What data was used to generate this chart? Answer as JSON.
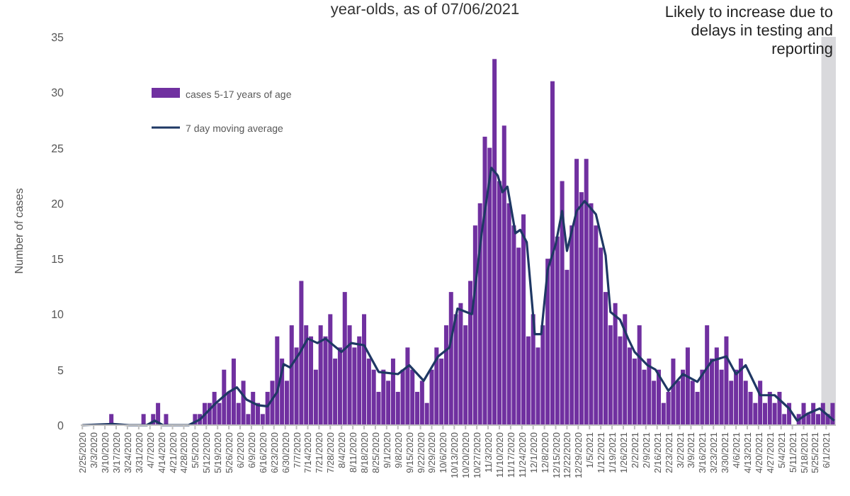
{
  "chart_data": {
    "type": "bar",
    "title": "year-olds, as of 07/06/2021",
    "ylabel": "Number of cases",
    "xlim": [
      "2020-02-24",
      "2021-06-07"
    ],
    "ylim": [
      0,
      35
    ],
    "yticks": [
      0,
      5,
      10,
      15,
      20,
      25,
      30,
      35
    ],
    "grid": false,
    "legend": "top left",
    "xticks": [
      {
        "value": "2020-02-25",
        "label": "2/25/2020"
      },
      {
        "value": "2020-03-03",
        "label": "3/3/2020"
      },
      {
        "value": "2020-03-10",
        "label": "3/10/2020"
      },
      {
        "value": "2020-03-17",
        "label": "3/17/2020"
      },
      {
        "value": "2020-03-24",
        "label": "3/24/2020"
      },
      {
        "value": "2020-03-31",
        "label": "3/31/2020"
      },
      {
        "value": "2020-04-07",
        "label": "4/7/2020"
      },
      {
        "value": "2020-04-14",
        "label": "4/14/2020"
      },
      {
        "value": "2020-04-21",
        "label": "4/21/2020"
      },
      {
        "value": "2020-04-28",
        "label": "4/28/2020"
      },
      {
        "value": "2020-05-05",
        "label": "5/5/2020"
      },
      {
        "value": "2020-05-12",
        "label": "5/12/2020"
      },
      {
        "value": "2020-05-19",
        "label": "5/19/2020"
      },
      {
        "value": "2020-05-26",
        "label": "5/26/2020"
      },
      {
        "value": "2020-06-02",
        "label": "6/2/2020"
      },
      {
        "value": "2020-06-09",
        "label": "6/9/2020"
      },
      {
        "value": "2020-06-16",
        "label": "6/16/2020"
      },
      {
        "value": "2020-06-23",
        "label": "6/23/2020"
      },
      {
        "value": "2020-06-30",
        "label": "6/30/2020"
      },
      {
        "value": "2020-07-07",
        "label": "7/7/2020"
      },
      {
        "value": "2020-07-14",
        "label": "7/14/2020"
      },
      {
        "value": "2020-07-21",
        "label": "7/21/2020"
      },
      {
        "value": "2020-07-28",
        "label": "7/28/2020"
      },
      {
        "value": "2020-08-04",
        "label": "8/4/2020"
      },
      {
        "value": "2020-08-11",
        "label": "8/11/2020"
      },
      {
        "value": "2020-08-18",
        "label": "8/18/2020"
      },
      {
        "value": "2020-08-25",
        "label": "8/25/2020"
      },
      {
        "value": "2020-09-01",
        "label": "9/1/2020"
      },
      {
        "value": "2020-09-08",
        "label": "9/8/2020"
      },
      {
        "value": "2020-09-15",
        "label": "9/15/2020"
      },
      {
        "value": "2020-09-22",
        "label": "9/22/2020"
      },
      {
        "value": "2020-09-29",
        "label": "9/29/2020"
      },
      {
        "value": "2020-10-06",
        "label": "10/6/2020"
      },
      {
        "value": "2020-10-13",
        "label": "10/13/2020"
      },
      {
        "value": "2020-10-20",
        "label": "10/20/2020"
      },
      {
        "value": "2020-10-27",
        "label": "10/27/2020"
      },
      {
        "value": "2020-11-03",
        "label": "11/3/2020"
      },
      {
        "value": "2020-11-10",
        "label": "11/10/2020"
      },
      {
        "value": "2020-11-17",
        "label": "11/17/2020"
      },
      {
        "value": "2020-11-24",
        "label": "11/24/2020"
      },
      {
        "value": "2020-12-01",
        "label": "12/1/2020"
      },
      {
        "value": "2020-12-08",
        "label": "12/8/2020"
      },
      {
        "value": "2020-12-15",
        "label": "12/15/2020"
      },
      {
        "value": "2020-12-22",
        "label": "12/22/2020"
      },
      {
        "value": "2020-12-29",
        "label": "12/29/2020"
      },
      {
        "value": "2021-01-05",
        "label": "1/5/2021"
      },
      {
        "value": "2021-01-12",
        "label": "1/12/2021"
      },
      {
        "value": "2021-01-19",
        "label": "1/19/2021"
      },
      {
        "value": "2021-01-26",
        "label": "1/26/2021"
      },
      {
        "value": "2021-02-02",
        "label": "2/2/2021"
      },
      {
        "value": "2021-02-09",
        "label": "2/9/2021"
      },
      {
        "value": "2021-02-16",
        "label": "2/16/2021"
      },
      {
        "value": "2021-02-23",
        "label": "2/23/2021"
      },
      {
        "value": "2021-03-02",
        "label": "3/2/2021"
      },
      {
        "value": "2021-03-09",
        "label": "3/9/2021"
      },
      {
        "value": "2021-03-16",
        "label": "3/16/2021"
      },
      {
        "value": "2021-03-23",
        "label": "3/23/2021"
      },
      {
        "value": "2021-03-30",
        "label": "3/30/2021"
      },
      {
        "value": "2021-04-06",
        "label": "4/6/2021"
      },
      {
        "value": "2021-04-13",
        "label": "4/13/2021"
      },
      {
        "value": "2021-04-20",
        "label": "4/20/2021"
      },
      {
        "value": "2021-04-27",
        "label": "4/27/2021"
      },
      {
        "value": "2021-05-04",
        "label": "5/4/2021"
      },
      {
        "value": "2021-05-11",
        "label": "5/11/2021"
      },
      {
        "value": "2021-05-18",
        "label": "5/18/2021"
      },
      {
        "value": "2021-05-25",
        "label": "5/25/2021"
      },
      {
        "value": "2021-06-01",
        "label": "6/1/2021"
      }
    ],
    "bands": [
      {
        "axis": "x",
        "from": "2021-05-29",
        "to": "2021-06-07",
        "label": "Likely to increase due to delays in testing and reporting",
        "color": "#d9d9dc"
      }
    ],
    "series": [
      {
        "name": "cases 5-17 years of age",
        "color": "#7030a0",
        "x": [
          "2020-03-14",
          "2020-04-03",
          "2020-04-09",
          "2020-04-12",
          "2020-04-17",
          "2020-05-05",
          "2020-05-08",
          "2020-05-11",
          "2020-05-14",
          "2020-05-17",
          "2020-05-20",
          "2020-05-23",
          "2020-05-26",
          "2020-05-29",
          "2020-06-01",
          "2020-06-04",
          "2020-06-07",
          "2020-06-10",
          "2020-06-13",
          "2020-06-16",
          "2020-06-19",
          "2020-06-22",
          "2020-06-25",
          "2020-06-28",
          "2020-07-01",
          "2020-07-04",
          "2020-07-07",
          "2020-07-10",
          "2020-07-13",
          "2020-07-16",
          "2020-07-19",
          "2020-07-22",
          "2020-07-25",
          "2020-07-28",
          "2020-07-31",
          "2020-08-03",
          "2020-08-06",
          "2020-08-09",
          "2020-08-12",
          "2020-08-15",
          "2020-08-18",
          "2020-08-21",
          "2020-08-24",
          "2020-08-27",
          "2020-08-30",
          "2020-09-02",
          "2020-09-05",
          "2020-09-08",
          "2020-09-11",
          "2020-09-14",
          "2020-09-17",
          "2020-09-20",
          "2020-09-23",
          "2020-09-26",
          "2020-09-29",
          "2020-10-02",
          "2020-10-05",
          "2020-10-08",
          "2020-10-11",
          "2020-10-14",
          "2020-10-17",
          "2020-10-20",
          "2020-10-23",
          "2020-10-26",
          "2020-10-29",
          "2020-11-01",
          "2020-11-04",
          "2020-11-07",
          "2020-11-10",
          "2020-11-13",
          "2020-11-16",
          "2020-11-19",
          "2020-11-22",
          "2020-11-25",
          "2020-11-28",
          "2020-12-01",
          "2020-12-04",
          "2020-12-07",
          "2020-12-10",
          "2020-12-13",
          "2020-12-16",
          "2020-12-19",
          "2020-12-22",
          "2020-12-25",
          "2020-12-28",
          "2020-12-31",
          "2021-01-03",
          "2021-01-06",
          "2021-01-09",
          "2021-01-12",
          "2021-01-15",
          "2021-01-18",
          "2021-01-21",
          "2021-01-24",
          "2021-01-27",
          "2021-01-30",
          "2021-02-02",
          "2021-02-05",
          "2021-02-08",
          "2021-02-11",
          "2021-02-14",
          "2021-02-17",
          "2021-02-20",
          "2021-02-23",
          "2021-02-26",
          "2021-03-01",
          "2021-03-04",
          "2021-03-07",
          "2021-03-10",
          "2021-03-13",
          "2021-03-16",
          "2021-03-19",
          "2021-03-22",
          "2021-03-25",
          "2021-03-28",
          "2021-03-31",
          "2021-04-03",
          "2021-04-06",
          "2021-04-09",
          "2021-04-12",
          "2021-04-15",
          "2021-04-18",
          "2021-04-21",
          "2021-04-24",
          "2021-04-27",
          "2021-04-30",
          "2021-05-03",
          "2021-05-06",
          "2021-05-09",
          "2021-05-12",
          "2021-05-15",
          "2021-05-18",
          "2021-05-21",
          "2021-05-24",
          "2021-05-27",
          "2021-05-30",
          "2021-06-02",
          "2021-06-05"
        ],
        "values": [
          1,
          1,
          1,
          2,
          1,
          1,
          1,
          2,
          2,
          3,
          2,
          5,
          3,
          6,
          2,
          4,
          1,
          3,
          2,
          1,
          3,
          4,
          8,
          6,
          4,
          9,
          7,
          13,
          9,
          8,
          5,
          9,
          8,
          10,
          6,
          7,
          12,
          9,
          7,
          8,
          10,
          6,
          5,
          3,
          5,
          4,
          6,
          3,
          5,
          7,
          5,
          3,
          4,
          2,
          5,
          7,
          6,
          9,
          12,
          10,
          11,
          9,
          13,
          18,
          20,
          26,
          25,
          33,
          22,
          27,
          20,
          18,
          16,
          19,
          8,
          10,
          7,
          9,
          15,
          31,
          17,
          22,
          14,
          18,
          24,
          21,
          24,
          20,
          18,
          16,
          12,
          9,
          11,
          8,
          10,
          7,
          6,
          9,
          5,
          6,
          4,
          5,
          2,
          3,
          6,
          4,
          5,
          7,
          4,
          3,
          5,
          9,
          6,
          7,
          5,
          8,
          4,
          5,
          6,
          4,
          3,
          2,
          4,
          2,
          3,
          2,
          3,
          1,
          2,
          0,
          1,
          2,
          1,
          2,
          1,
          2,
          1,
          2
        ]
      },
      {
        "name": "7 day moving average",
        "type": "line",
        "color": "#1f3864",
        "line_style": "solid",
        "marker": "none",
        "x": [
          "2020-02-25",
          "2020-03-15",
          "2020-03-25",
          "2020-04-05",
          "2020-04-10",
          "2020-04-15",
          "2020-05-01",
          "2020-05-08",
          "2020-05-18",
          "2020-05-26",
          "2020-05-31",
          "2020-06-06",
          "2020-06-13",
          "2020-06-19",
          "2020-06-25",
          "2020-06-29",
          "2020-07-03",
          "2020-07-09",
          "2020-07-14",
          "2020-07-20",
          "2020-07-25",
          "2020-08-04",
          "2020-08-10",
          "2020-08-18",
          "2020-08-27",
          "2020-09-08",
          "2020-09-15",
          "2020-09-24",
          "2020-10-03",
          "2020-10-10",
          "2020-10-15",
          "2020-10-24",
          "2020-10-30",
          "2020-11-05",
          "2020-11-09",
          "2020-11-12",
          "2020-11-15",
          "2020-11-20",
          "2020-11-23",
          "2020-11-27",
          "2020-12-02",
          "2020-12-06",
          "2020-12-10",
          "2020-12-15",
          "2020-12-19",
          "2020-12-22",
          "2020-12-28",
          "2021-01-02",
          "2021-01-09",
          "2021-01-15",
          "2021-01-18",
          "2021-01-24",
          "2021-01-29",
          "2021-02-02",
          "2021-02-10",
          "2021-02-15",
          "2021-02-23",
          "2021-03-04",
          "2021-03-13",
          "2021-03-22",
          "2021-03-31",
          "2021-04-06",
          "2021-04-12",
          "2021-04-21",
          "2021-04-30",
          "2021-05-09",
          "2021-05-14",
          "2021-05-20",
          "2021-05-28",
          "2021-06-06"
        ],
        "values": [
          0,
          0.1,
          0,
          0,
          0.4,
          0,
          0,
          0.5,
          2,
          3,
          3.4,
          2.3,
          1.8,
          1.7,
          3,
          5.5,
          5.2,
          6.5,
          7.8,
          7.4,
          7.8,
          6.6,
          7.4,
          7.2,
          4.8,
          4.6,
          5.4,
          4,
          6.2,
          7,
          10.5,
          10,
          17.3,
          23.2,
          22.5,
          21,
          21.5,
          17.3,
          17.6,
          16.5,
          8.2,
          8.2,
          14,
          16.3,
          19.3,
          15.7,
          19.3,
          20.2,
          19,
          15.3,
          10.2,
          9.5,
          7.8,
          6.6,
          5.4,
          5,
          3.1,
          4.6,
          3.9,
          5.8,
          6.2,
          4.6,
          5.4,
          2.7,
          2.7,
          1.5,
          0.4,
          1,
          1.5,
          0.4
        ]
      }
    ]
  }
}
